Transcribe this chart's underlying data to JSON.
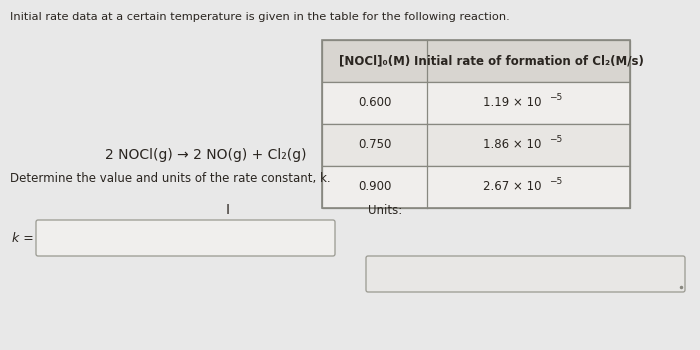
{
  "title": "Initial rate data at a certain temperature is given in the table for the following reaction.",
  "reaction": "2 NOCl(g) → 2 NO(g) + Cl₂(g)",
  "col1_header": "[NOCl]₀(M)",
  "col2_header": "Initial rate of formation of Cl₂(M/s)",
  "rows": [
    [
      "0.600",
      "1.19 × 10"
    ],
    [
      "0.750",
      "1.86 × 10"
    ],
    [
      "0.900",
      "2.67 × 10"
    ]
  ],
  "superscripts": [
    "−5",
    "−5",
    "−5"
  ],
  "bottom_text": "Determine the value and units of the rate constant, k.",
  "k_label": "k =",
  "units_label": "Units:",
  "bg_color": "#c8c8c8",
  "panel_color": "#e8e8e8",
  "table_bg": "#f0eeec",
  "table_header_bg": "#d8d5d0",
  "row_bg_even": "#f0eeec",
  "row_bg_odd": "#e8e6e3",
  "input_box_color": "#f0efed",
  "input_box2_color": "#e8e7e5",
  "border_color": "#888880",
  "text_color": "#2a2520",
  "font_size_title": 8.2,
  "font_size_body": 8.5,
  "font_size_table_header": 8.5,
  "font_size_table_data": 8.5
}
